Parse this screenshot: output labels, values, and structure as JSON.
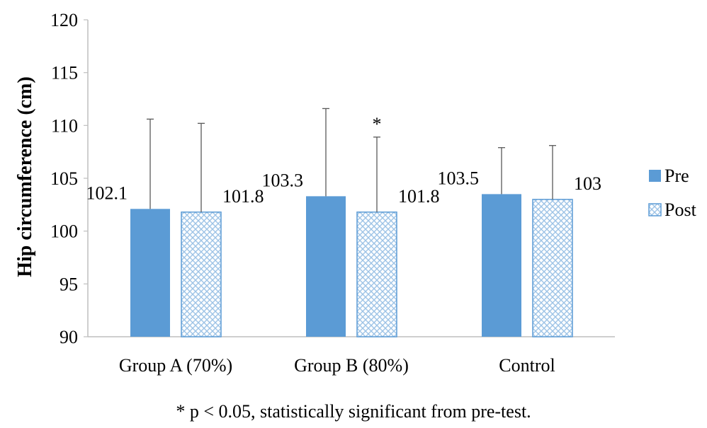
{
  "chart_data": {
    "type": "bar",
    "ylabel": "Hip circumference (cm)",
    "xlabel": "",
    "ylim": [
      90,
      120
    ],
    "yticks": [
      90,
      95,
      100,
      105,
      110,
      115,
      120
    ],
    "categories": [
      "Group A (70%)",
      "Group B (80%)",
      "Control"
    ],
    "series": [
      {
        "name": "Pre",
        "values": [
          102.1,
          103.3,
          103.5
        ],
        "errors": [
          8.5,
          8.3,
          4.4
        ],
        "labels": [
          "102.1",
          "103.3",
          "103.5"
        ],
        "color": "#5b9bd5",
        "fill": "solid"
      },
      {
        "name": "Post",
        "values": [
          101.8,
          101.8,
          103
        ],
        "errors": [
          8.4,
          7.1,
          5.1
        ],
        "labels": [
          "101.8",
          "101.8",
          "103"
        ],
        "color": "#5b9bd5",
        "fill": "checkered"
      }
    ],
    "annotations": [
      {
        "text": "*",
        "category": "Group B (80%)",
        "series": "Post"
      }
    ],
    "legend_position": "right",
    "grid": false,
    "footnote": "* p < 0.05, statistically significant from pre-test."
  }
}
